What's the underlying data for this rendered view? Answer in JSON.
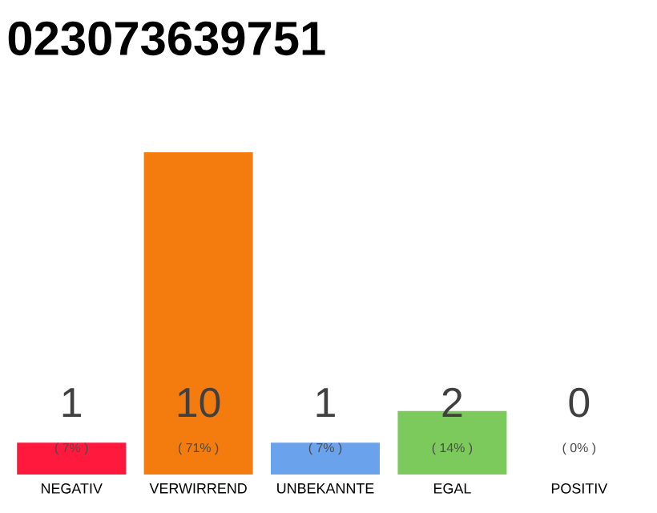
{
  "chart_data": {
    "type": "bar",
    "title": "023073639751",
    "categories": [
      "NEGATIV",
      "VERWIRREND",
      "UNBEKANNTE",
      "EGAL",
      "POSITIV"
    ],
    "values": [
      7,
      71,
      7,
      14,
      0
    ],
    "colors": [
      "#ff1a3d",
      "#f47c0e",
      "#6aa3ec",
      "#7cc95c",
      "#bdbdbd"
    ],
    "value_labels": [
      "( 7% )",
      "( 71% )",
      "( 7% )",
      "( 14% )",
      "( 0% )"
    ],
    "annotations": [
      "1",
      "10",
      "1",
      "2",
      "0"
    ]
  }
}
